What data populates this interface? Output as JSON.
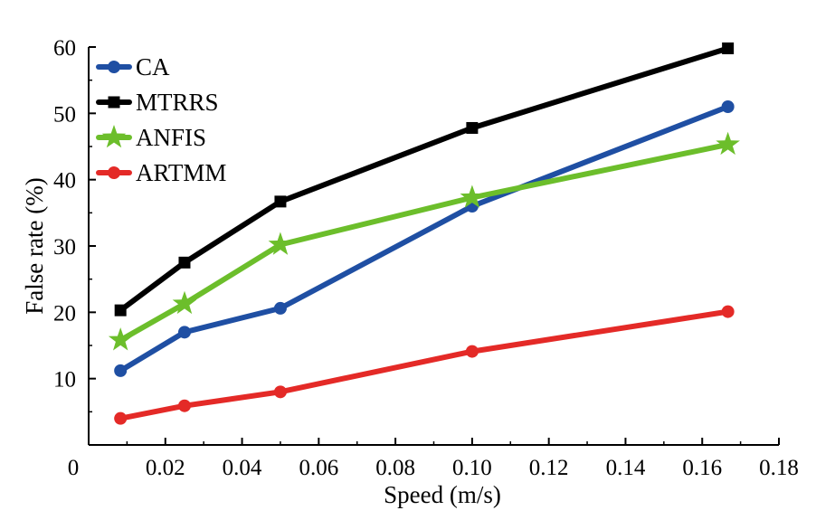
{
  "chart_data": {
    "type": "line",
    "title": "",
    "xlabel": "Speed (m/s)",
    "ylabel": "False rate (%)",
    "xlim": [
      0,
      0.18
    ],
    "ylim": [
      0,
      60
    ],
    "x_ticks": [
      0.02,
      0.04,
      0.06,
      0.08,
      0.1,
      0.12,
      0.14,
      0.16,
      0.18
    ],
    "x_tick_labels": [
      "0.02",
      "0.04",
      "0.06",
      "0.08",
      "0.10",
      "0.12",
      "0.14",
      "0.16",
      "0.18"
    ],
    "y_ticks": [
      10,
      20,
      30,
      40,
      50,
      60
    ],
    "y_tick_labels": [
      "10",
      "20",
      "30",
      "40",
      "50",
      "60"
    ],
    "origin_label": "0",
    "grid": false,
    "legend_position": "top-left",
    "x": [
      0.0083,
      0.025,
      0.05,
      0.1,
      0.1667
    ],
    "series": [
      {
        "name": "CA",
        "color": "#1f4fa3",
        "marker": "circle",
        "values": [
          11.2,
          17.0,
          20.6,
          36.0,
          51.0
        ]
      },
      {
        "name": "MTRRS",
        "color": "#000000",
        "marker": "square",
        "values": [
          20.3,
          27.5,
          36.7,
          47.8,
          59.8
        ]
      },
      {
        "name": "ANFIS",
        "color": "#6cbe2b",
        "marker": "star",
        "values": [
          15.8,
          21.3,
          30.2,
          37.3,
          45.3
        ]
      },
      {
        "name": "ARTMM",
        "color": "#e42a27",
        "marker": "circle",
        "values": [
          4.0,
          5.9,
          8.0,
          14.1,
          20.1
        ]
      }
    ]
  }
}
